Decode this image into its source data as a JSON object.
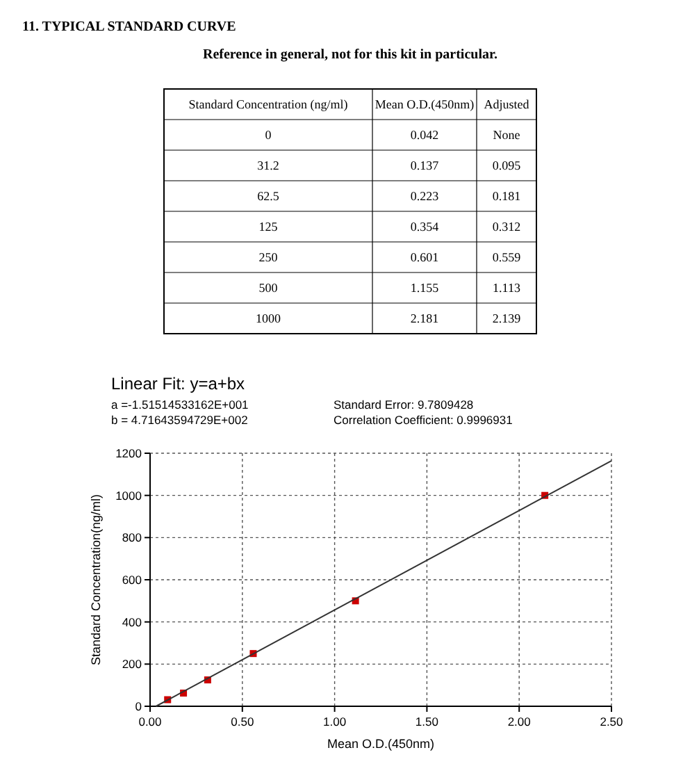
{
  "chart_data": [
    {
      "type": "other",
      "title": "11. TYPICAL STANDARD CURVE",
      "subtitle": "Reference in general, not for this kit in particular.",
      "categories": [
        "Standard Concentration (ng/ml)",
        "Mean O.D.(450nm)",
        "Adjusted"
      ],
      "annotations": [
        "0",
        "0.042",
        "None",
        "31.2",
        "0.137",
        "0.095",
        "62.5",
        "0.223",
        "0.181",
        "125",
        "0.354",
        "0.312",
        "250",
        "0.601",
        "0.559",
        "500",
        "1.155",
        "1.113",
        "1000",
        "2.181",
        "2.139"
      ]
    },
    {
      "type": "scatter",
      "title": "Linear Fit: y=a+bx",
      "annotations": [
        "a =-1.51514533162E+001",
        "b = 4.71643594729E+002",
        "Standard Error: 9.7809428",
        "Correlation Coefficient: 0.9996931"
      ],
      "xlabel": "Mean O.D.(450nm)",
      "ylabel": "Standard Concentration(ng/ml)",
      "xlim": [
        0,
        2.5
      ],
      "xticks": [
        {
          "value": 0,
          "label": "0.00"
        },
        {
          "value": 0.5,
          "label": "0.50"
        },
        {
          "value": 1,
          "label": "1.00"
        },
        {
          "value": 1.5,
          "label": "1.50"
        },
        {
          "value": 2,
          "label": "2.00"
        },
        {
          "value": 2.5,
          "label": "2.50"
        }
      ],
      "ylim": [
        0,
        1200
      ],
      "yticks": [
        0,
        200,
        400,
        600,
        800,
        1000,
        1200
      ],
      "grid": true,
      "series": [
        {
          "type": "scatter",
          "marker": "square",
          "color": "#cc0000",
          "x": [
            0.095,
            0.181,
            0.312,
            0.559,
            1.113,
            2.139
          ],
          "values": [
            31.2,
            62.5,
            125,
            250,
            500,
            1000
          ]
        },
        {
          "type": "line",
          "marker": "none",
          "color": "#333333",
          "x": [
            0.032,
            2.5
          ],
          "values": [
            0,
            1164
          ]
        }
      ]
    }
  ]
}
